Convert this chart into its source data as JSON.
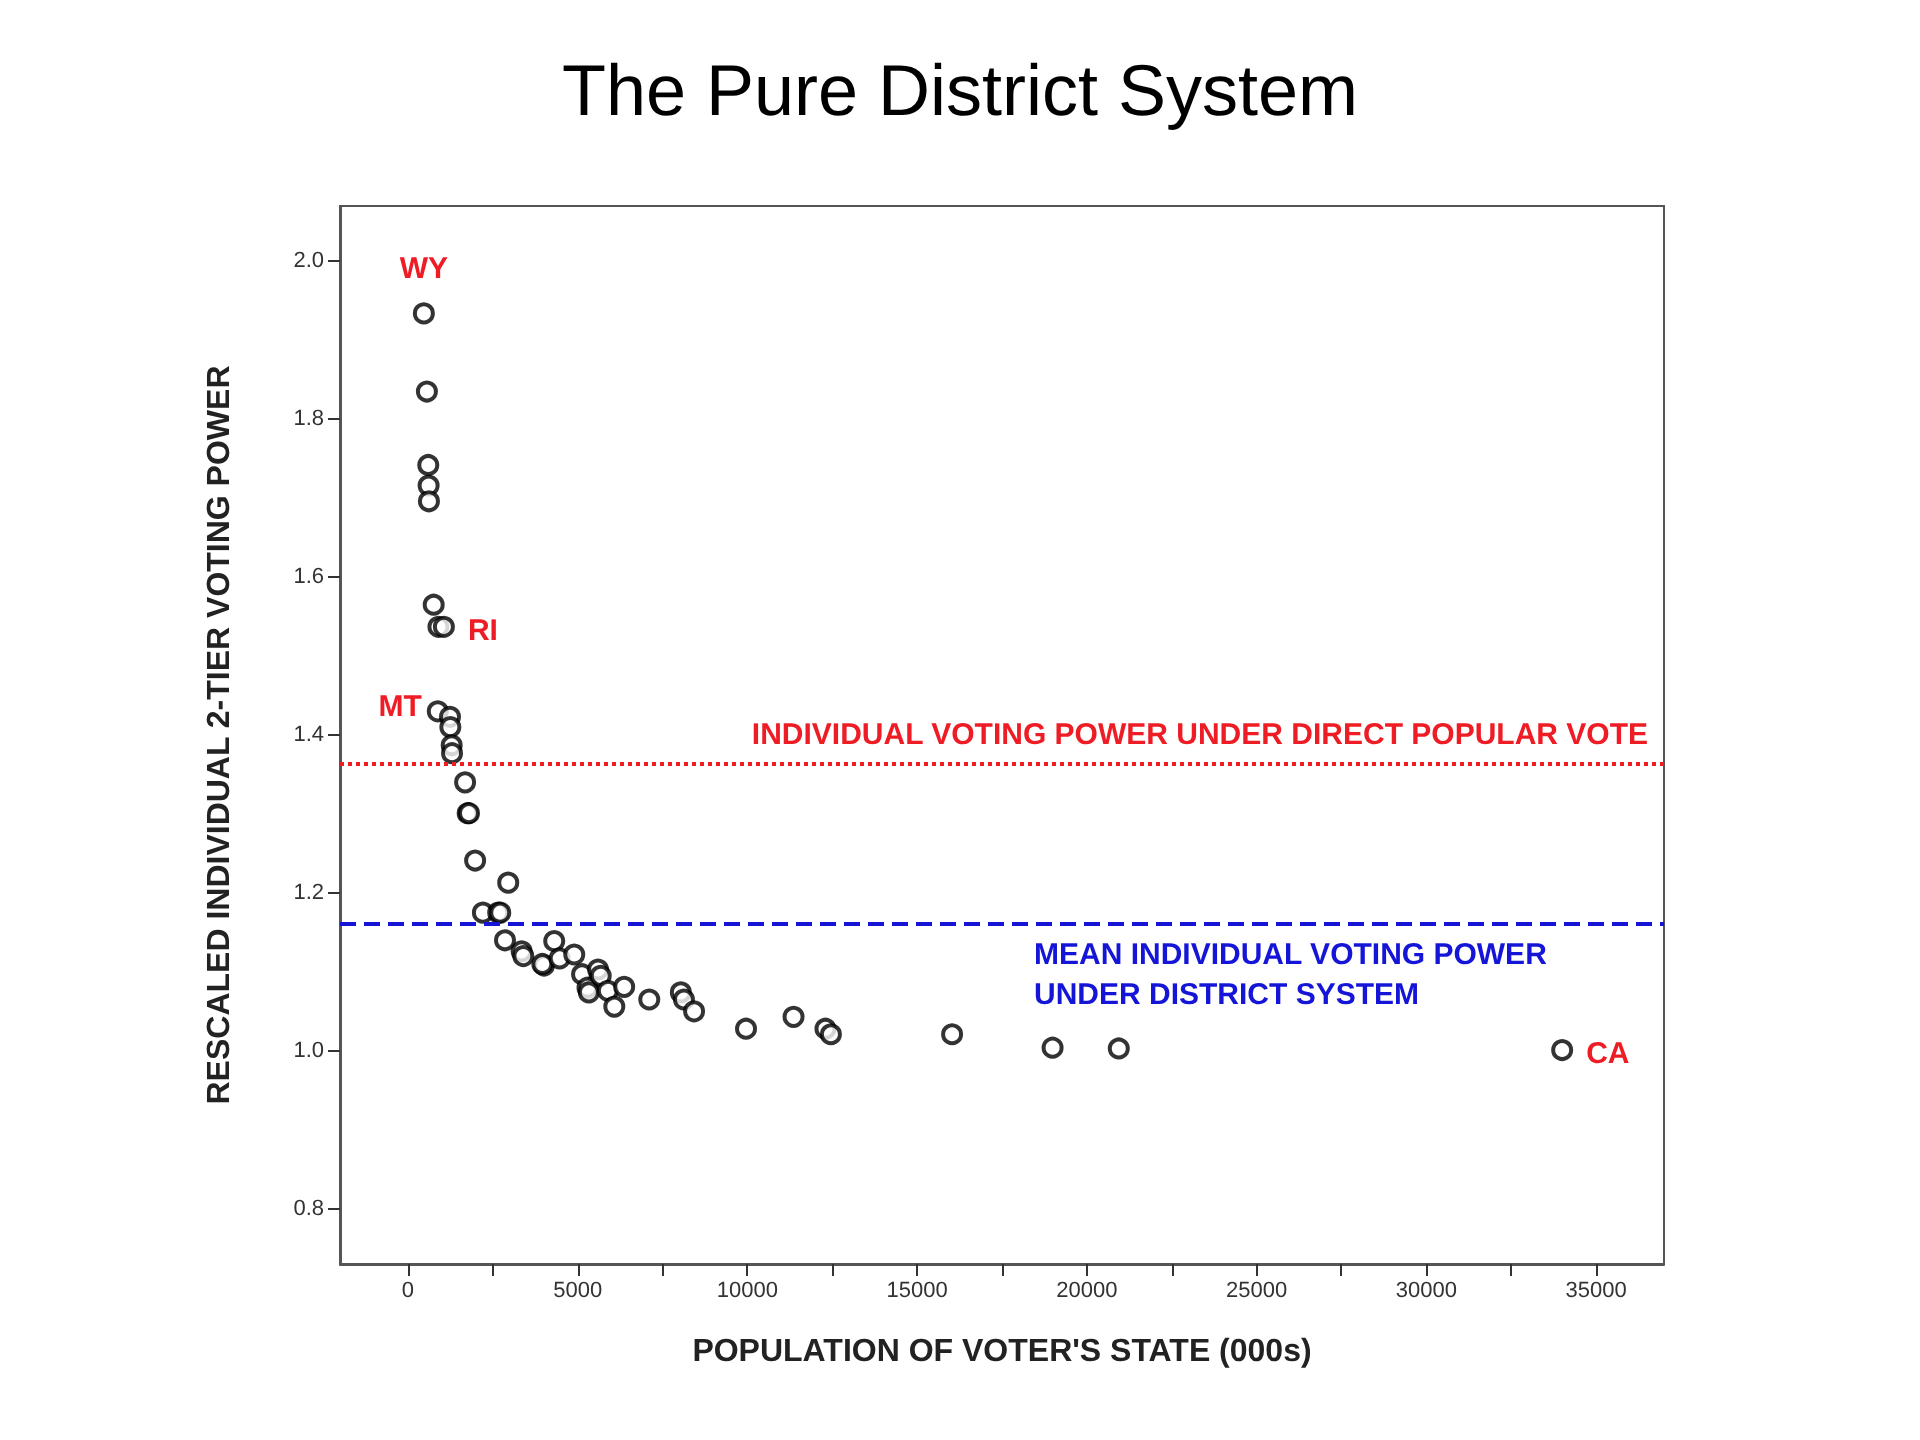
{
  "chart_data": {
    "type": "scatter",
    "title": "The Pure District System",
    "xlabel": "POPULATION OF VOTER'S STATE (000s)",
    "ylabel": "RESCALED INDIVIDUAL 2-TIER VOTING POWER",
    "x": [
      470,
      560,
      600,
      610,
      620,
      760,
      900,
      1060,
      880,
      1240,
      1250,
      1290,
      1300,
      1685,
      1760,
      1800,
      1980,
      2955,
      2210,
      2660,
      2720,
      2860,
      3350,
      3400,
      4010,
      3960,
      4310,
      4470,
      4900,
      5130,
      5290,
      5330,
      5600,
      5680,
      5890,
      6080,
      6370,
      7110,
      8040,
      8130,
      8430,
      9960,
      11360,
      12300,
      12460,
      16030,
      18990,
      20940,
      34000
    ],
    "values": [
      1.934,
      1.835,
      1.742,
      1.716,
      1.696,
      1.565,
      1.537,
      1.537,
      1.43,
      1.423,
      1.41,
      1.387,
      1.377,
      1.34,
      1.301,
      1.301,
      1.241,
      1.213,
      1.175,
      1.175,
      1.175,
      1.14,
      1.126,
      1.12,
      1.108,
      1.11,
      1.139,
      1.117,
      1.122,
      1.097,
      1.08,
      1.074,
      1.103,
      1.095,
      1.076,
      1.056,
      1.081,
      1.065,
      1.074,
      1.065,
      1.05,
      1.028,
      1.043,
      1.028,
      1.021,
      1.021,
      1.004,
      1.003,
      1.001
    ],
    "color": "#000000",
    "marker": "circle",
    "grid": false,
    "xlim": [
      -2000,
      37000
    ],
    "ylim": [
      0.73,
      2.07
    ],
    "xticks": [
      0,
      {
        "value": 2500,
        "label": null
      },
      5000,
      {
        "value": 7500,
        "label": null
      },
      10000,
      {
        "value": 12500,
        "label": null
      },
      15000,
      {
        "value": 17500,
        "label": null
      },
      20000,
      {
        "value": 22500,
        "label": null
      },
      25000,
      {
        "value": 27500,
        "label": null
      },
      30000,
      {
        "value": 32500,
        "label": null
      },
      35000
    ],
    "yticks": [
      0.8,
      {
        "value": 1,
        "label": "1.0"
      },
      1.2,
      1.4,
      1.6,
      1.8,
      {
        "value": 2,
        "label": "2.0"
      }
    ],
    "ref_lines": [
      {
        "axis": "y",
        "value": 1.365,
        "label": "INDIVIDUAL VOTING POWER UNDER DIRECT POPULAR VOTE",
        "color": "#ee1c25",
        "line_style": "dotted"
      },
      {
        "axis": "y",
        "value": 1.162,
        "label": "MEAN INDIVIDUAL VOTING POWER UNDER DISTRICT SYSTEM",
        "color": "#1515d8",
        "line_style": "dashed"
      }
    ],
    "annotations": [
      {
        "text": "WY",
        "x": 470,
        "y": 1.934
      },
      {
        "text": "RI",
        "x": 1060,
        "y": 1.537
      },
      {
        "text": "MT",
        "x": 880,
        "y": 1.43
      },
      {
        "text": "CA",
        "x": 34000,
        "y": 1.001
      }
    ]
  }
}
